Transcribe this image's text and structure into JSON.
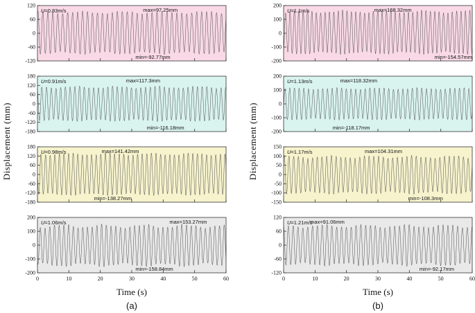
{
  "figure": {
    "ylabel": "Displacement  (mm)",
    "xlabel": "Time  (s)",
    "col_a_label": "(a)",
    "col_b_label": "(b)"
  },
  "axes": {
    "xlim": [
      0,
      60
    ],
    "xticks": [
      0,
      10,
      20,
      30,
      40,
      50,
      60
    ],
    "xlabel": "Time  (s)",
    "ylabel": "Displacement  (mm)",
    "grid": false,
    "legend": "none"
  },
  "chart_data": [
    {
      "type": "line",
      "id": "a1",
      "column": "a",
      "u_label": "U=0.83m/s",
      "max_label": "max=97.25mm",
      "min_label": "min=-92.77mm",
      "max": 97.25,
      "min": -92.77,
      "ylim": [
        -120,
        120
      ],
      "yticks": [
        120,
        60,
        0,
        -60,
        -120
      ],
      "bg": "#f8d9e5",
      "signal": {
        "kind": "sinusoid",
        "cycles": 38,
        "seed": 1,
        "amp_mod": 0.07
      },
      "max_pos": 0.56,
      "min_pos": 0.52,
      "show_x_labels": false
    },
    {
      "type": "line",
      "id": "a2",
      "column": "a",
      "u_label": "U=0.91m/s",
      "max_label": "max=117.3mm",
      "min_label": "min=-116.18mm",
      "max": 117.3,
      "min": -116.18,
      "ylim": [
        -180,
        180
      ],
      "yticks": [
        180,
        120,
        60,
        0,
        -60,
        -120,
        -180
      ],
      "bg": "#d9f3ef",
      "signal": {
        "kind": "sinusoid",
        "cycles": 40,
        "seed": 2,
        "amp_mod": 0.07
      },
      "max_pos": 0.47,
      "min_pos": 0.58,
      "show_x_labels": false
    },
    {
      "type": "line",
      "id": "a3",
      "column": "a",
      "u_label": "U=0.98m/s",
      "max_label": "max=141.42mm",
      "min_label": "min=-138.27mm",
      "max": 141.42,
      "min": -138.27,
      "ylim": [
        -180,
        180
      ],
      "yticks": [
        180,
        120,
        60,
        0,
        -60,
        -120,
        -180
      ],
      "bg": "#f6f3cd",
      "signal": {
        "kind": "sinusoid",
        "cycles": 41,
        "seed": 3,
        "amp_mod": 0.06
      },
      "max_pos": 0.34,
      "min_pos": 0.3,
      "show_x_labels": false
    },
    {
      "type": "line",
      "id": "a4",
      "column": "a",
      "u_label": "U=1.06m/s",
      "max_label": "max=153.27mm",
      "min_label": "min=-158.84mm",
      "max": 153.27,
      "min": -158.84,
      "ylim": [
        -200,
        200
      ],
      "yticks": [
        200,
        100,
        0,
        -100,
        -200
      ],
      "bg": "#e9e9e9",
      "signal": {
        "kind": "sinusoid",
        "cycles": 40,
        "seed": 4,
        "amp_mod": 0.1
      },
      "max_pos": 0.7,
      "min_pos": 0.52,
      "show_x_labels": true
    },
    {
      "type": "line",
      "id": "b1",
      "column": "b",
      "u_label": "U=1.1m/s",
      "max_label": "max=168.32mm",
      "min_label": "min=-154.57mm",
      "max": 168.32,
      "min": -154.57,
      "ylim": [
        -200,
        200
      ],
      "yticks": [
        200,
        100,
        0,
        -100,
        -200
      ],
      "bg": "#f8d9e5",
      "signal": {
        "kind": "sinusoid",
        "cycles": 43,
        "seed": 5,
        "amp_mod": 0.07
      },
      "max_pos": 0.48,
      "min_pos": 0.8,
      "show_x_labels": false
    },
    {
      "type": "line",
      "id": "b2",
      "column": "b",
      "u_label": "U=1.13m/s",
      "max_label": "max=118.32mm",
      "min_label": "min=-118.17mm",
      "max": 118.32,
      "min": -118.17,
      "ylim": [
        -200,
        200
      ],
      "yticks": [
        200,
        100,
        0,
        -100,
        -200
      ],
      "bg": "#d9f3ef",
      "signal": {
        "kind": "sinusoid",
        "cycles": 40,
        "seed": 6,
        "amp_mod": 0.06
      },
      "max_pos": 0.3,
      "min_pos": 0.26,
      "show_x_labels": false
    },
    {
      "type": "line",
      "id": "b3",
      "column": "b",
      "u_label": "U=1.17m/s",
      "max_label": "max=104.31mm",
      "min_label": "min=-108.3mm",
      "max": 104.31,
      "min": -108.3,
      "ylim": [
        -150,
        150
      ],
      "yticks": [
        150,
        100,
        50,
        0,
        -50,
        -100,
        -150
      ],
      "bg": "#f6f3cd",
      "signal": {
        "kind": "sinusoid",
        "cycles": 40,
        "seed": 7,
        "amp_mod": 0.08
      },
      "max_pos": 0.43,
      "min_pos": 0.66,
      "show_x_labels": false
    },
    {
      "type": "line",
      "id": "b4",
      "column": "b",
      "u_label": "U=1.21m/s",
      "max_label": "max=91.06mm",
      "min_label": "min=-92.17mm",
      "max": 91.06,
      "min": -92.17,
      "ylim": [
        -120,
        120
      ],
      "yticks": [
        120,
        60,
        0,
        -60,
        -120
      ],
      "bg": "#e9e9e9",
      "signal": {
        "kind": "sinusoid",
        "cycles": 39,
        "seed": 8,
        "amp_mod": 0.09
      },
      "max_pos": 0.14,
      "min_pos": 0.72,
      "show_x_labels": true
    }
  ]
}
